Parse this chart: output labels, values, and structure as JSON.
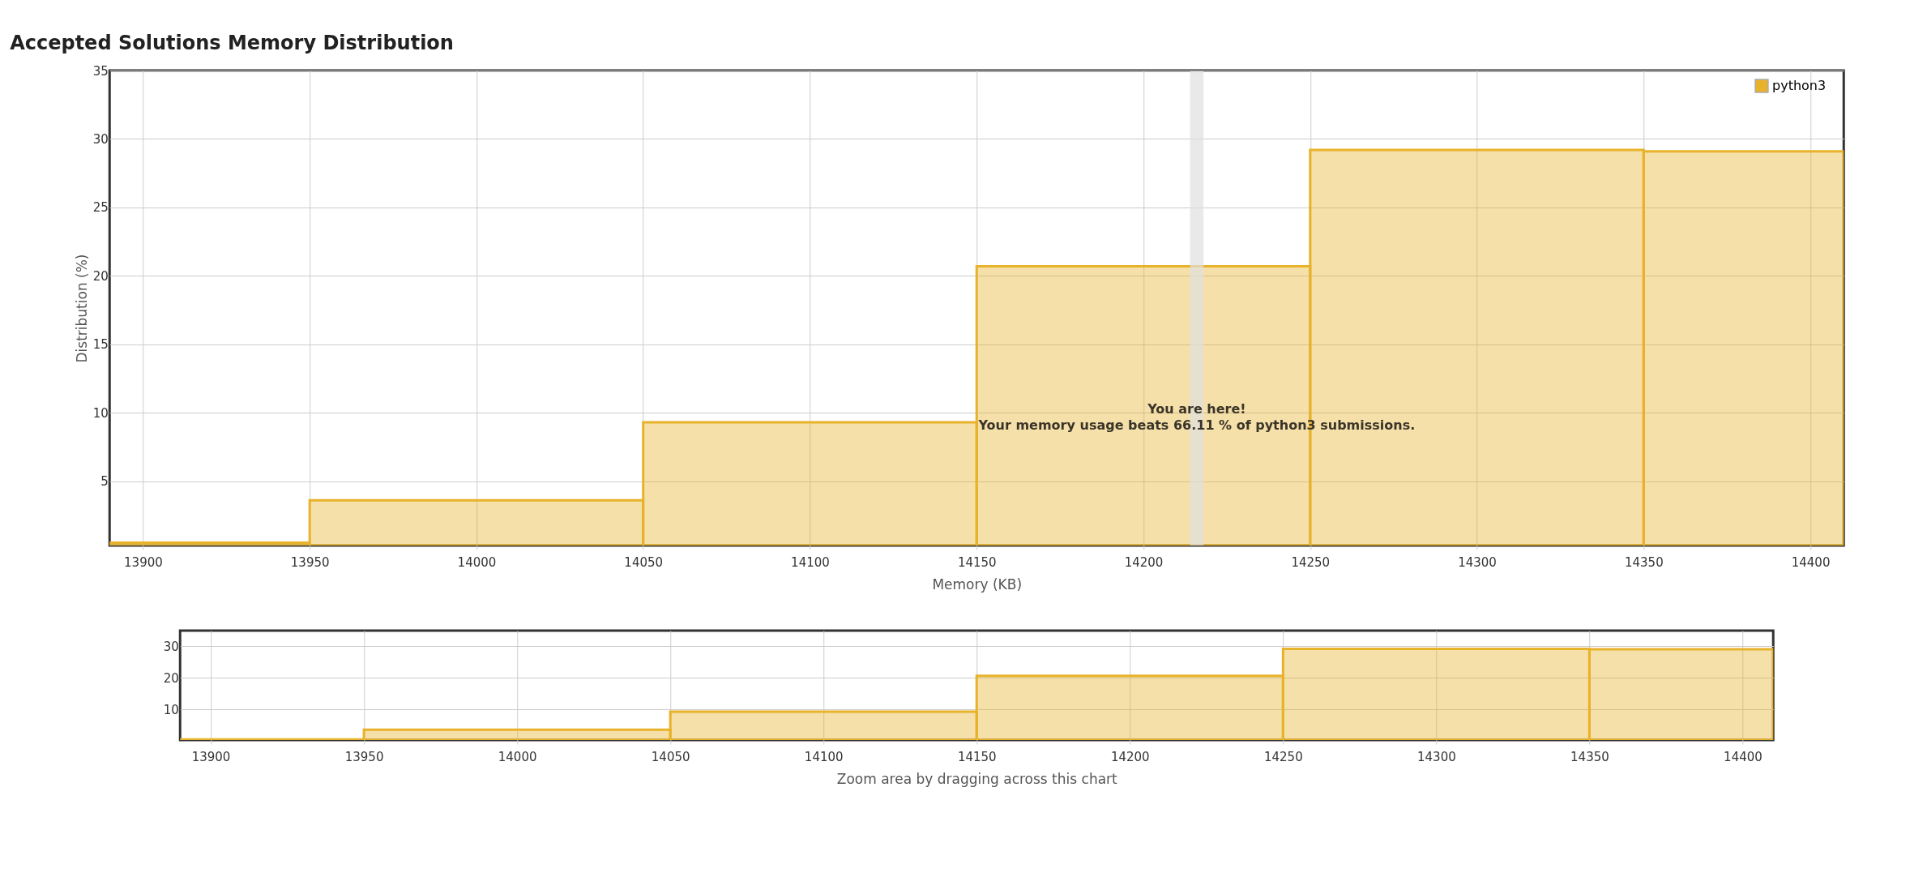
{
  "chart_data": [
    {
      "type": "histogram",
      "title": "Accepted Solutions Memory Distribution",
      "xlabel": "Memory (KB)",
      "ylabel": "Distribution (%)",
      "bins": [
        13890,
        13950,
        14050,
        14150,
        14250,
        14350,
        14410
      ],
      "series": [
        {
          "name": "python3",
          "color": "#e8b22a",
          "values": [
            0.5,
            3.6,
            9.3,
            20.7,
            29.2,
            29.1
          ]
        }
      ],
      "xlim": [
        13890,
        14410
      ],
      "xticks": [
        13900,
        13950,
        14000,
        14050,
        14100,
        14150,
        14200,
        14250,
        14300,
        14350,
        14400
      ],
      "ylim": [
        0.3,
        35
      ],
      "yticks": [
        5,
        10,
        15,
        20,
        25,
        30,
        35
      ],
      "grid": true,
      "legend": "top right",
      "bands": [
        {
          "axis": "x",
          "from": 14214,
          "to": 14218,
          "color": "#e0e0e0"
        }
      ],
      "annotations": [
        "You are here!",
        "Your memory usage beats 66.11 % of python3 submissions."
      ]
    },
    {
      "type": "histogram",
      "xlabel": "Zoom area by dragging across this chart",
      "bins": [
        13890,
        13950,
        14050,
        14150,
        14250,
        14350,
        14410
      ],
      "series": [
        {
          "color": "#e8b22a",
          "values": [
            0.5,
            3.6,
            9.3,
            20.7,
            29.2,
            29.1
          ]
        }
      ],
      "xlim": [
        13890,
        14410
      ],
      "xticks": [
        13900,
        13950,
        14000,
        14050,
        14100,
        14150,
        14200,
        14250,
        14300,
        14350,
        14400
      ],
      "ylim": [
        0.3,
        35
      ],
      "yticks": [
        10,
        20,
        30
      ],
      "grid": true
    }
  ]
}
